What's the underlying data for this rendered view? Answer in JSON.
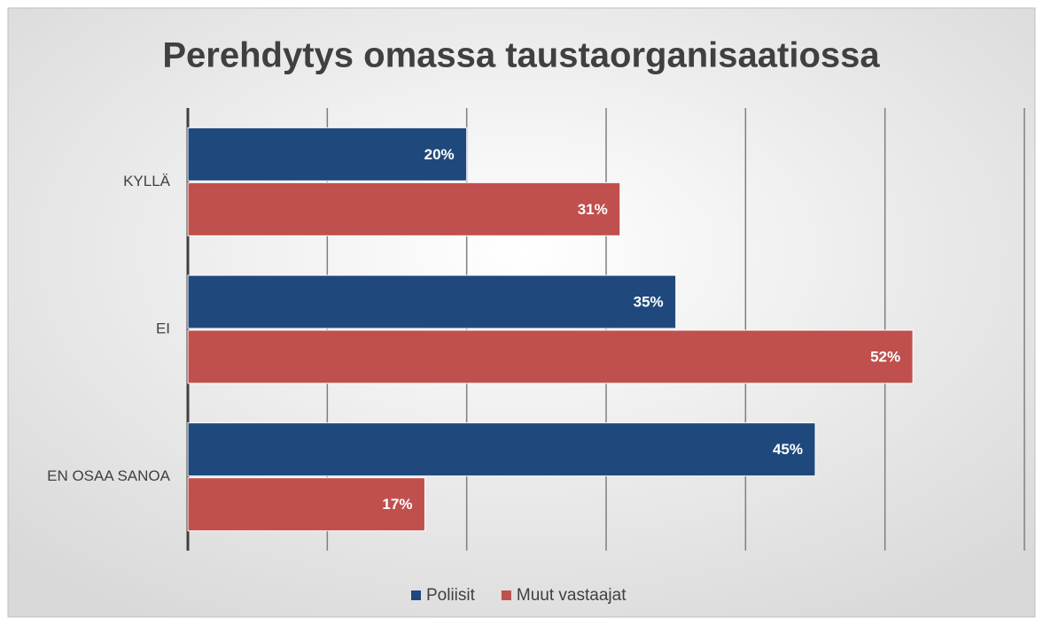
{
  "chart_data": {
    "type": "bar",
    "orientation": "horizontal",
    "title": "Perehdytys omassa taustaorganisaatiossa",
    "categories": [
      "KYLLÄ",
      "EI",
      "EN OSAA SANOA"
    ],
    "series": [
      {
        "name": "Poliisit",
        "color": "#1f497d",
        "values": [
          20,
          35,
          45
        ],
        "value_labels": [
          "20%",
          "35%",
          "45%"
        ]
      },
      {
        "name": "Muut vastaajat",
        "color": "#c0504d",
        "values": [
          31,
          52,
          17
        ],
        "value_labels": [
          "31%",
          "52%",
          "17%"
        ]
      }
    ],
    "xlim": [
      0,
      60
    ],
    "xticks": [
      0,
      10,
      20,
      30,
      40,
      50,
      60
    ],
    "grid": true,
    "legend": "bottom"
  }
}
